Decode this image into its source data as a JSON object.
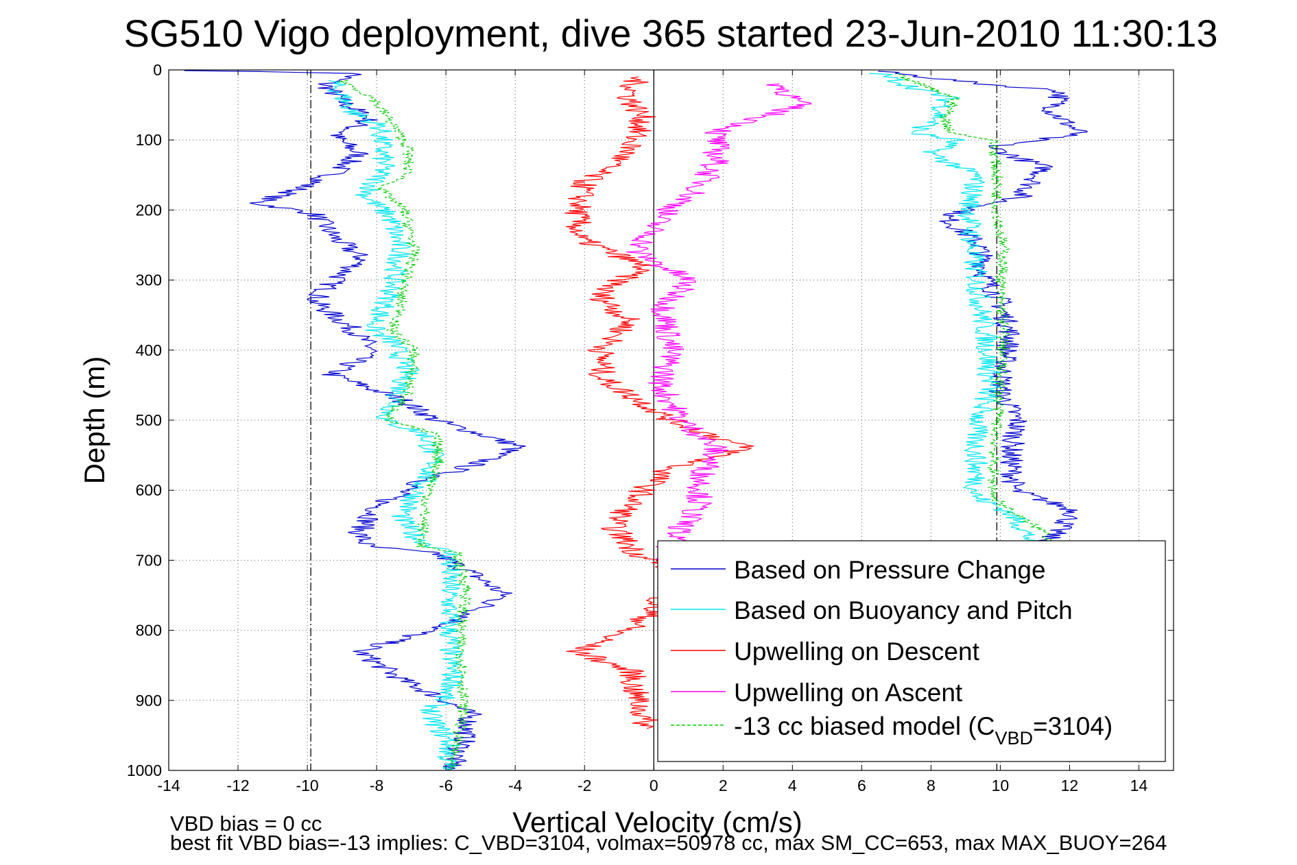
{
  "chart_data": {
    "type": "line",
    "title": "SG510 Vigo deployment, dive 365 started 23-Jun-2010 11:30:13",
    "xlabel": "Vertical Velocity (cm/s)",
    "ylabel": "Depth (m)",
    "xlim": [
      -14,
      15
    ],
    "ylim": [
      0,
      1000
    ],
    "y_reversed": true,
    "grid": true,
    "xticks": [
      -14,
      -12,
      -10,
      -8,
      -6,
      -4,
      -2,
      0,
      2,
      4,
      6,
      8,
      10,
      12,
      14
    ],
    "yticks": [
      0,
      100,
      200,
      300,
      400,
      500,
      600,
      700,
      800,
      900,
      1000
    ],
    "legend_position": "bottom-right",
    "reference_lines": {
      "zero_x": 0,
      "dashdot_x": [
        -9.9,
        9.9
      ]
    },
    "series": [
      {
        "name": "Based on Pressure Change",
        "color": "#0000cc",
        "descent": [
          [
            -13.2,
            1
          ],
          [
            -8.5,
            5
          ],
          [
            -9.5,
            20
          ],
          [
            -9,
            45
          ],
          [
            -8.2,
            70
          ],
          [
            -9.2,
            95
          ],
          [
            -8.5,
            120
          ],
          [
            -9.3,
            150
          ],
          [
            -10.5,
            175
          ],
          [
            -11.5,
            190
          ],
          [
            -9.8,
            205
          ],
          [
            -9.2,
            240
          ],
          [
            -8.4,
            270
          ],
          [
            -9.2,
            300
          ],
          [
            -9.8,
            330
          ],
          [
            -8.7,
            370
          ],
          [
            -8.1,
            400
          ],
          [
            -9.3,
            435
          ],
          [
            -7.3,
            470
          ],
          [
            -6.3,
            500
          ],
          [
            -5,
            520
          ],
          [
            -3.9,
            537
          ],
          [
            -5,
            560
          ],
          [
            -6.8,
            590
          ],
          [
            -7.9,
            620
          ],
          [
            -8.5,
            660
          ],
          [
            -8.3,
            680
          ],
          [
            -6.3,
            690
          ],
          [
            -5.2,
            720
          ],
          [
            -4.3,
            750
          ],
          [
            -5.8,
            790
          ],
          [
            -8.5,
            830
          ],
          [
            -7.3,
            870
          ],
          [
            -6,
            900
          ],
          [
            -5.3,
            920
          ],
          [
            -5.5,
            960
          ],
          [
            -5.9,
            1000
          ]
        ],
        "ascent": [
          [
            6.5,
            2
          ],
          [
            9.5,
            20
          ],
          [
            11.8,
            30
          ],
          [
            11.5,
            60
          ],
          [
            12.3,
            90
          ],
          [
            9.7,
            110
          ],
          [
            11.3,
            140
          ],
          [
            10.6,
            180
          ],
          [
            8.4,
            210
          ],
          [
            9.4,
            250
          ],
          [
            9.6,
            300
          ],
          [
            10,
            330
          ],
          [
            10.3,
            380
          ],
          [
            10.1,
            420
          ],
          [
            10,
            460
          ],
          [
            10.5,
            500
          ],
          [
            10.3,
            550
          ],
          [
            10.4,
            600
          ],
          [
            12.2,
            630
          ],
          [
            11.6,
            660
          ],
          [
            11.1,
            680
          ]
        ]
      },
      {
        "name": "Based on Buoyancy and Pitch",
        "color": "#00e5ee",
        "descent": [
          [
            -9.3,
            15
          ],
          [
            -8.7,
            60
          ],
          [
            -7.9,
            80
          ],
          [
            -7.8,
            140
          ],
          [
            -8.3,
            180
          ],
          [
            -7.6,
            210
          ],
          [
            -7.3,
            260
          ],
          [
            -7.6,
            320
          ],
          [
            -8.1,
            370
          ],
          [
            -7.5,
            390
          ],
          [
            -7.1,
            430
          ],
          [
            -7.5,
            480
          ],
          [
            -7.8,
            500
          ],
          [
            -6.6,
            520
          ],
          [
            -6.3,
            560
          ],
          [
            -6.8,
            600
          ],
          [
            -7.3,
            640
          ],
          [
            -6.8,
            670
          ],
          [
            -5.9,
            690
          ],
          [
            -5.9,
            800
          ],
          [
            -5.8,
            880
          ],
          [
            -6.5,
            920
          ],
          [
            -5.9,
            960
          ],
          [
            -6,
            1000
          ]
        ],
        "ascent": [
          [
            6.5,
            5
          ],
          [
            7.5,
            25
          ],
          [
            8.5,
            40
          ],
          [
            8.2,
            70
          ],
          [
            7.5,
            90
          ],
          [
            8.7,
            100
          ],
          [
            8,
            120
          ],
          [
            9.3,
            150
          ],
          [
            9.1,
            200
          ],
          [
            9.2,
            260
          ],
          [
            9.4,
            330
          ],
          [
            9.6,
            380
          ],
          [
            9.7,
            450
          ],
          [
            9.3,
            510
          ],
          [
            9.3,
            560
          ],
          [
            9.3,
            610
          ],
          [
            10.2,
            630
          ],
          [
            10.6,
            650
          ],
          [
            11,
            680
          ]
        ]
      },
      {
        "name": "Upwelling on Descent",
        "color": "#ff0000",
        "profile": [
          [
            -0.5,
            10
          ],
          [
            -0.7,
            40
          ],
          [
            -0.3,
            70
          ],
          [
            -0.8,
            120
          ],
          [
            -2,
            160
          ],
          [
            -2.2,
            200
          ],
          [
            -2.2,
            240
          ],
          [
            -0.3,
            280
          ],
          [
            -1.6,
            320
          ],
          [
            -0.7,
            360
          ],
          [
            -1.5,
            400
          ],
          [
            -1.5,
            440
          ],
          [
            0.5,
            500
          ],
          [
            2.7,
            540
          ],
          [
            0.4,
            570
          ],
          [
            -0.3,
            600
          ],
          [
            -1.2,
            650
          ],
          [
            -0.5,
            690
          ],
          [
            0.8,
            720
          ],
          [
            -0.4,
            790
          ],
          [
            -2.2,
            830
          ],
          [
            -0.6,
            860
          ],
          [
            -0.6,
            880
          ],
          [
            -0.2,
            940
          ]
        ]
      },
      {
        "name": "Upwelling on Ascent",
        "color": "#ff00ff",
        "profile": [
          [
            3.6,
            20
          ],
          [
            4.2,
            50
          ],
          [
            1.8,
            90
          ],
          [
            1.8,
            130
          ],
          [
            1.3,
            170
          ],
          [
            0.2,
            210
          ],
          [
            -0.5,
            260
          ],
          [
            1,
            300
          ],
          [
            0.3,
            340
          ],
          [
            0.5,
            400
          ],
          [
            0.2,
            450
          ],
          [
            0.8,
            500
          ],
          [
            1.8,
            540
          ],
          [
            1.4,
            580
          ],
          [
            1.3,
            620
          ],
          [
            0.7,
            660
          ],
          [
            0.2,
            700
          ]
        ]
      },
      {
        "name": "-13 cc biased model (C_VBD=3104)",
        "color": "#00cc00",
        "dashed": true,
        "descent": [
          [
            -9,
            15
          ],
          [
            -8.1,
            40
          ],
          [
            -7.5,
            80
          ],
          [
            -7.1,
            110
          ],
          [
            -7.1,
            150
          ],
          [
            -7.9,
            170
          ],
          [
            -7.2,
            200
          ],
          [
            -6.9,
            260
          ],
          [
            -7.3,
            320
          ],
          [
            -7.3,
            350
          ],
          [
            -7.6,
            370
          ],
          [
            -6.9,
            400
          ],
          [
            -7.1,
            460
          ],
          [
            -7.7,
            500
          ],
          [
            -6.3,
            520
          ],
          [
            -6.2,
            560
          ],
          [
            -6.6,
            620
          ],
          [
            -6.7,
            680
          ],
          [
            -5.7,
            690
          ],
          [
            -5.4,
            740
          ],
          [
            -5.6,
            800
          ],
          [
            -5.5,
            870
          ],
          [
            -5.5,
            920
          ],
          [
            -5.7,
            960
          ],
          [
            -5.9,
            1000
          ]
        ],
        "ascent": [
          [
            6.9,
            5
          ],
          [
            7.9,
            25
          ],
          [
            8.7,
            40
          ],
          [
            8.4,
            70
          ],
          [
            8.6,
            90
          ],
          [
            9.8,
            100
          ],
          [
            9.9,
            150
          ],
          [
            9.9,
            200
          ],
          [
            10.1,
            260
          ],
          [
            10,
            320
          ],
          [
            10.1,
            380
          ],
          [
            10,
            450
          ],
          [
            9.9,
            510
          ],
          [
            9.8,
            560
          ],
          [
            9.8,
            610
          ],
          [
            10.6,
            640
          ],
          [
            11.3,
            660
          ],
          [
            11.5,
            680
          ]
        ]
      }
    ],
    "legend": {
      "entries": [
        "Based on Pressure Change",
        "Based on Buoyancy and Pitch",
        "Upwelling on Descent",
        "Upwelling on Ascent"
      ],
      "last_entry_prefix": "-13 cc biased model (C",
      "last_entry_sub": "VBD",
      "last_entry_suffix": "=3104)"
    },
    "annotations": {
      "vbd_bias": "VBD bias = 0 cc",
      "best_fit": "best fit VBD bias=-13 implies: C_VBD=3104, volmax=50978 cc, max SM_CC=653, max MAX_BUOY=264"
    }
  }
}
